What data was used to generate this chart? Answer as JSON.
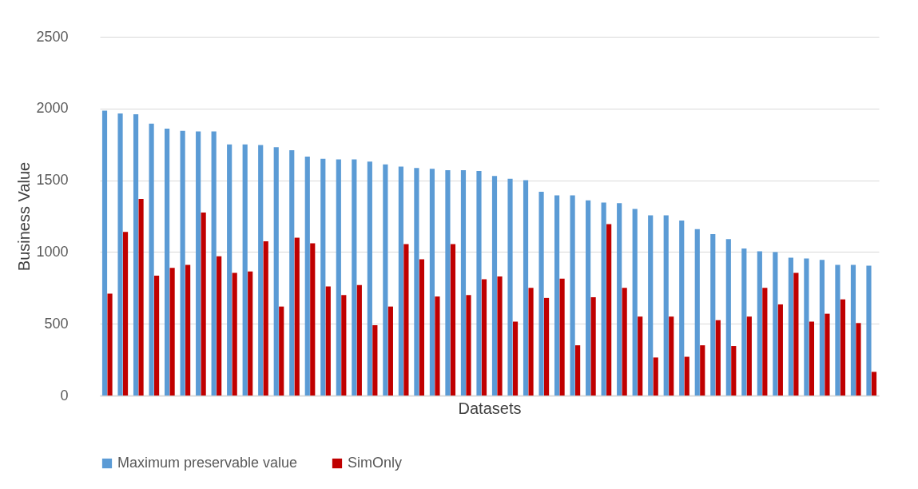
{
  "chart_data": {
    "type": "bar",
    "xlabel": "Datasets",
    "ylabel": "Business Value",
    "categories": [
      null,
      null,
      null,
      null,
      null,
      null,
      null,
      null,
      null,
      null,
      null,
      null,
      null,
      null,
      null,
      null,
      null,
      null,
      null,
      null,
      null,
      null,
      null,
      null,
      null,
      null,
      null,
      null,
      null,
      null,
      null,
      null,
      null,
      null,
      null,
      null,
      null,
      null,
      null,
      null,
      null,
      null,
      null,
      null,
      null,
      null,
      null,
      null,
      null,
      null
    ],
    "series": [
      {
        "name": "Maximum preservable value",
        "color": "#5b9bd5",
        "values": [
          1985,
          1965,
          1960,
          1895,
          1860,
          1845,
          1840,
          1840,
          1750,
          1750,
          1745,
          1730,
          1710,
          1665,
          1650,
          1645,
          1645,
          1630,
          1610,
          1595,
          1585,
          1580,
          1570,
          1570,
          1565,
          1530,
          1510,
          1500,
          1420,
          1395,
          1395,
          1360,
          1345,
          1340,
          1300,
          1255,
          1255,
          1220,
          1160,
          1125,
          1090,
          1025,
          1005,
          1000,
          960,
          955,
          945,
          910,
          910,
          905
        ]
      },
      {
        "name": "SimOnly",
        "color": "#c00000",
        "values": [
          710,
          1140,
          1370,
          835,
          890,
          910,
          1275,
          970,
          855,
          865,
          1075,
          620,
          1100,
          1060,
          760,
          700,
          770,
          490,
          620,
          1055,
          950,
          690,
          1055,
          700,
          810,
          830,
          515,
          750,
          680,
          815,
          350,
          685,
          1195,
          750,
          550,
          265,
          550,
          270,
          350,
          525,
          345,
          550,
          750,
          635,
          855,
          515,
          570,
          670,
          505,
          165
        ]
      }
    ],
    "ylim": [
      0,
      2500
    ],
    "yticks": [
      0,
      500,
      1000,
      1500,
      2000,
      2500
    ],
    "grid": "y",
    "legend": "bottom"
  }
}
